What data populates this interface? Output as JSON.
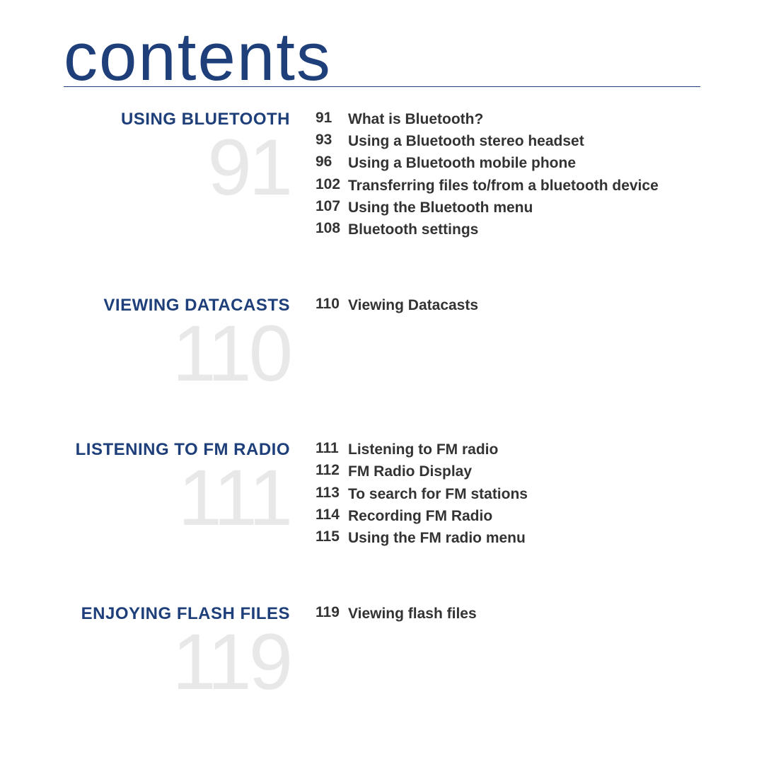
{
  "title": "contents",
  "colors": {
    "heading": "#1e3f7a",
    "big_number": "#e8e8e8",
    "body_text": "#333333",
    "background": "#ffffff"
  },
  "typography": {
    "title_fontsize": 96,
    "section_title_fontsize": 24,
    "big_number_fontsize": 112,
    "entry_fontsize": 21
  },
  "sections": [
    {
      "title": "USING BLUETOOTH",
      "page": "91",
      "entries": [
        {
          "page": "91",
          "label": "What is Bluetooth?"
        },
        {
          "page": "93",
          "label": "Using a Bluetooth stereo headset"
        },
        {
          "page": "96",
          "label": "Using a Bluetooth mobile phone"
        },
        {
          "page": "102",
          "label": "Transferring files to/from a bluetooth device"
        },
        {
          "page": "107",
          "label": "Using the Bluetooth menu"
        },
        {
          "page": "108",
          "label": "Bluetooth settings"
        }
      ]
    },
    {
      "title": "VIEWING DATACASTS",
      "page": "110",
      "entries": [
        {
          "page": "110",
          "label": "Viewing Datacasts"
        }
      ]
    },
    {
      "title": "LISTENING TO FM RADIO",
      "page": "111",
      "entries": [
        {
          "page": "111",
          "label": "Listening to FM radio"
        },
        {
          "page": "112",
          "label": "FM Radio Display"
        },
        {
          "page": "113",
          "label": "To search for FM stations"
        },
        {
          "page": "114",
          "label": "Recording FM Radio"
        },
        {
          "page": "115",
          "label": "Using the FM radio menu"
        }
      ]
    },
    {
      "title": "ENJOYING FLASH FILES",
      "page": "119",
      "entries": [
        {
          "page": "119",
          "label": "Viewing flash files"
        }
      ]
    }
  ]
}
